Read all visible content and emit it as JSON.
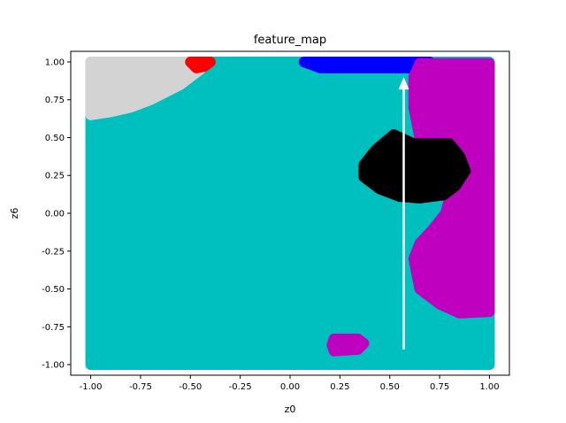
{
  "chart_data": {
    "type": "scatter",
    "title": "feature_map",
    "xlabel": "z0",
    "ylabel": "z6",
    "xlim": [
      -1.1,
      1.1
    ],
    "ylim": [
      -1.07,
      1.07
    ],
    "xticks": [
      "-1.00",
      "-0.75",
      "-0.50",
      "-0.25",
      "0.00",
      "0.25",
      "0.50",
      "0.75",
      "1.00"
    ],
    "xtick_values": [
      -1.0,
      -0.75,
      -0.5,
      -0.25,
      0.0,
      0.25,
      0.5,
      0.75,
      1.0
    ],
    "yticks": [
      "-1.00",
      "-0.75",
      "-0.50",
      "-0.25",
      "0.00",
      "0.25",
      "0.50",
      "0.75",
      "1.00"
    ],
    "ytick_values": [
      -1.0,
      -0.75,
      -0.5,
      -0.25,
      0.0,
      0.25,
      0.5,
      0.75,
      1.0
    ],
    "grid": false,
    "background_color": "#00bfbf",
    "regions": [
      {
        "color": "#d3d3d3",
        "polygon": [
          [
            -1.0,
            1.0
          ],
          [
            -0.5,
            1.0
          ],
          [
            -0.45,
            0.95
          ],
          [
            -0.55,
            0.85
          ],
          [
            -0.7,
            0.75
          ],
          [
            -0.8,
            0.7
          ],
          [
            -0.9,
            0.67
          ],
          [
            -1.0,
            0.65
          ]
        ]
      },
      {
        "color": "#ff0000",
        "polygon": [
          [
            -0.5,
            1.0
          ],
          [
            -0.4,
            1.0
          ],
          [
            -0.43,
            0.97
          ],
          [
            -0.47,
            0.96
          ]
        ]
      },
      {
        "color": "#0000ff",
        "polygon": [
          [
            0.07,
            1.0
          ],
          [
            0.7,
            1.0
          ],
          [
            0.68,
            0.96
          ],
          [
            0.15,
            0.96
          ]
        ]
      },
      {
        "color": "#bf00bf",
        "polygon": [
          [
            0.65,
            0.99
          ],
          [
            1.0,
            0.99
          ],
          [
            1.0,
            -0.65
          ],
          [
            0.85,
            -0.66
          ],
          [
            0.75,
            -0.6
          ],
          [
            0.65,
            -0.5
          ],
          [
            0.62,
            -0.3
          ],
          [
            0.65,
            -0.2
          ],
          [
            0.72,
            -0.1
          ],
          [
            0.78,
            0.0
          ],
          [
            0.8,
            0.1
          ],
          [
            0.8,
            0.45
          ],
          [
            0.65,
            0.5
          ],
          [
            0.62,
            0.7
          ],
          [
            0.62,
            0.9
          ]
        ]
      },
      {
        "color": "#000000",
        "polygon": [
          [
            0.52,
            0.52
          ],
          [
            0.62,
            0.46
          ],
          [
            0.8,
            0.46
          ],
          [
            0.85,
            0.38
          ],
          [
            0.88,
            0.28
          ],
          [
            0.83,
            0.18
          ],
          [
            0.77,
            0.12
          ],
          [
            0.65,
            0.1
          ],
          [
            0.55,
            0.11
          ],
          [
            0.45,
            0.16
          ],
          [
            0.37,
            0.24
          ],
          [
            0.37,
            0.32
          ],
          [
            0.43,
            0.42
          ]
        ]
      },
      {
        "color": "#bf00bf",
        "polygon": [
          [
            0.22,
            -0.83
          ],
          [
            0.34,
            -0.83
          ],
          [
            0.37,
            -0.86
          ],
          [
            0.34,
            -0.9
          ],
          [
            0.22,
            -0.91
          ],
          [
            0.21,
            -0.87
          ]
        ]
      }
    ],
    "arrow": {
      "color": "#ffffff",
      "x": 0.57,
      "y_start": -0.9,
      "y_end": 0.9
    }
  }
}
